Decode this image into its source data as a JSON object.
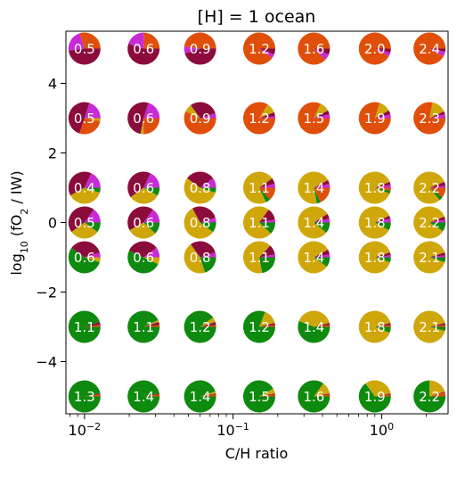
{
  "chart_data": {
    "type": "scatter",
    "title": "[H] = 1 ocean",
    "xlabel": "C/H ratio",
    "ylabel": "log10 (fO2 / IW)",
    "x_scale": "log",
    "xlim": [
      0.0075,
      2.8
    ],
    "ylim": [
      -5.5,
      5.5
    ],
    "x_tick_labels": [
      {
        "value": 0.01,
        "label": "10",
        "exp": "−2"
      },
      {
        "value": 0.1,
        "label": "10",
        "exp": "−1"
      },
      {
        "value": 1,
        "label": "10",
        "exp": "0"
      }
    ],
    "y_tick_labels": [
      {
        "value": 4,
        "label": "4"
      },
      {
        "value": 2,
        "label": "2"
      },
      {
        "value": 0,
        "label": "0"
      },
      {
        "value": -2,
        "label": "−2"
      },
      {
        "value": -4,
        "label": "−4"
      }
    ],
    "x": [
      0.01,
      0.025,
      0.06,
      0.15,
      0.35,
      0.9,
      2.1
    ],
    "y": [
      5,
      3,
      1,
      0,
      -1,
      -3,
      -5
    ],
    "colors": {
      "H2": "#0e8a0e",
      "CO2": "#cfa70a",
      "CH4": "#e04f0a",
      "H2O": "#8b0c3c",
      "CO": "#c82bd6"
    },
    "rows": [
      {
        "y": 5,
        "labels": [
          "0.5",
          "0.6",
          "0.9",
          "1.2",
          "1.6",
          "2.0",
          "2.4"
        ],
        "pies": [
          [
            [
              "CH4",
              0.3
            ],
            [
              "CO",
              0.22
            ],
            [
              "H2O",
              0.48
            ]
          ],
          [
            [
              "CH4",
              0.25
            ],
            [
              "CO",
              0.2
            ],
            [
              "H2O",
              0.55
            ]
          ],
          [
            [
              "CH4",
              0.48
            ],
            [
              "CO",
              0.07
            ],
            [
              "H2O",
              0.45
            ]
          ],
          [
            [
              "CH4",
              0.9
            ],
            [
              "CO",
              0.04
            ],
            [
              "H2O",
              0.06
            ]
          ],
          [
            [
              "CH4",
              0.88
            ],
            [
              "CO",
              0.06
            ],
            [
              "H2O",
              0.06
            ]
          ],
          [
            [
              "CH4",
              0.92
            ],
            [
              "CO",
              0.04
            ],
            [
              "H2O",
              0.04
            ]
          ],
          [
            [
              "CH4",
              0.92
            ],
            [
              "CO",
              0.05
            ],
            [
              "H2O",
              0.03
            ]
          ]
        ]
      },
      {
        "y": 3,
        "labels": [
          "0.5",
          "0.6",
          "0.9",
          "1.2",
          "1.5",
          "1.9",
          "2.3"
        ],
        "pies": [
          [
            [
              "CO",
              0.2
            ],
            [
              "H2O",
              0.5
            ],
            [
              "CH4",
              0.27
            ],
            [
              "CO2",
              0.03
            ]
          ],
          [
            [
              "CO",
              0.2
            ],
            [
              "H2O",
              0.52
            ],
            [
              "CO2",
              0.03
            ],
            [
              "CH4",
              0.25
            ]
          ],
          [
            [
              "CO",
              0.05
            ],
            [
              "H2O",
              0.3
            ],
            [
              "CO2",
              0.08
            ],
            [
              "CH4",
              0.57
            ]
          ],
          [
            [
              "CO",
              0.02
            ],
            [
              "H2O",
              0.04
            ],
            [
              "CO2",
              0.1
            ],
            [
              "CH4",
              0.84
            ]
          ],
          [
            [
              "CO",
              0.04
            ],
            [
              "H2O",
              0.04
            ],
            [
              "CO2",
              0.1
            ],
            [
              "CH4",
              0.82
            ]
          ],
          [
            [
              "CO",
              0.04
            ],
            [
              "H2O",
              0.04
            ],
            [
              "CO2",
              0.12
            ],
            [
              "CH4",
              0.8
            ]
          ],
          [
            [
              "CO",
              0.04
            ],
            [
              "H2O",
              0.03
            ],
            [
              "CO2",
              0.15
            ],
            [
              "CH4",
              0.78
            ]
          ]
        ]
      },
      {
        "y": 1,
        "labels": [
          "0.4",
          "0.6",
          "0.8",
          "1.1",
          "1.4",
          "1.8",
          "2.2"
        ],
        "pies": [
          [
            [
              "CO",
              0.18
            ],
            [
              "H2O",
              0.4
            ],
            [
              "CO2",
              0.37
            ],
            [
              "H2",
              0.05
            ]
          ],
          [
            [
              "CO",
              0.18
            ],
            [
              "H2O",
              0.42
            ],
            [
              "CO2",
              0.32
            ],
            [
              "H2",
              0.08
            ]
          ],
          [
            [
              "CO",
              0.1
            ],
            [
              "H2O",
              0.3
            ],
            [
              "CO2",
              0.55
            ],
            [
              "H2",
              0.05
            ]
          ],
          [
            [
              "CO",
              0.04
            ],
            [
              "H2O",
              0.06
            ],
            [
              "CO2",
              0.72
            ],
            [
              "H2",
              0.05
            ],
            [
              "CH4",
              0.13
            ]
          ],
          [
            [
              "CO",
              0.04
            ],
            [
              "H2O",
              0.04
            ],
            [
              "CO2",
              0.7
            ],
            [
              "H2",
              0.04
            ],
            [
              "CH4",
              0.18
            ]
          ],
          [
            [
              "CO",
              0.03
            ],
            [
              "H2O",
              0.03
            ],
            [
              "CO2",
              0.88
            ],
            [
              "H2",
              0.03
            ],
            [
              "CH4",
              0.03
            ]
          ],
          [
            [
              "CO",
              0.02
            ],
            [
              "H2O",
              0.04
            ],
            [
              "CO2",
              0.8
            ],
            [
              "H2",
              0.04
            ],
            [
              "CH4",
              0.1
            ]
          ]
        ]
      },
      {
        "y": 0,
        "labels": [
          "0.5",
          "0.6",
          "0.8",
          "1.1",
          "1.4",
          "1.8",
          "2.2"
        ],
        "pies": [
          [
            [
              "CO",
              0.15
            ],
            [
              "H2O",
              0.45
            ],
            [
              "CO2",
              0.3
            ],
            [
              "H2",
              0.1
            ]
          ],
          [
            [
              "CO",
              0.15
            ],
            [
              "H2O",
              0.43
            ],
            [
              "CO2",
              0.3
            ],
            [
              "H2",
              0.12
            ]
          ],
          [
            [
              "CO",
              0.05
            ],
            [
              "H2O",
              0.28
            ],
            [
              "CO2",
              0.57
            ],
            [
              "H2",
              0.1
            ]
          ],
          [
            [
              "CO",
              0.03
            ],
            [
              "H2O",
              0.12
            ],
            [
              "CO2",
              0.73
            ],
            [
              "H2",
              0.12
            ]
          ],
          [
            [
              "CO",
              0.04
            ],
            [
              "H2O",
              0.05
            ],
            [
              "CO2",
              0.8
            ],
            [
              "H2",
              0.11
            ]
          ],
          [
            [
              "CO",
              0.04
            ],
            [
              "H2O",
              0.03
            ],
            [
              "CO2",
              0.85
            ],
            [
              "H2",
              0.08
            ]
          ],
          [
            [
              "CO",
              0.03
            ],
            [
              "H2O",
              0.03
            ],
            [
              "CO2",
              0.85
            ],
            [
              "H2",
              0.09
            ]
          ]
        ]
      },
      {
        "y": -1,
        "labels": [
          "0.6",
          "0.6",
          "0.8",
          "1.1",
          "1.4",
          "1.8",
          "2.1"
        ],
        "pies": [
          [
            [
              "CO",
              0.05
            ],
            [
              "H2O",
              0.35
            ],
            [
              "H2",
              0.55
            ],
            [
              "CO2",
              0.05
            ]
          ],
          [
            [
              "CO",
              0.1
            ],
            [
              "H2O",
              0.33
            ],
            [
              "H2",
              0.5
            ],
            [
              "CO2",
              0.07
            ]
          ],
          [
            [
              "CO",
              0.05
            ],
            [
              "H2O",
              0.3
            ],
            [
              "CO2",
              0.45
            ],
            [
              "H2",
              0.2
            ]
          ],
          [
            [
              "CO",
              0.03
            ],
            [
              "H2O",
              0.1
            ],
            [
              "CO2",
              0.65
            ],
            [
              "H2",
              0.22
            ]
          ],
          [
            [
              "CO",
              0.03
            ],
            [
              "H2O",
              0.05
            ],
            [
              "CO2",
              0.82
            ],
            [
              "H2",
              0.1
            ]
          ],
          [
            [
              "CO",
              0.02
            ],
            [
              "H2O",
              0.03
            ],
            [
              "CO2",
              0.9
            ],
            [
              "H2",
              0.05
            ]
          ],
          [
            [
              "CO",
              0.02
            ],
            [
              "H2O",
              0.03
            ],
            [
              "CO2",
              0.9
            ],
            [
              "H2",
              0.05
            ]
          ]
        ]
      },
      {
        "y": -3,
        "labels": [
          "1.1",
          "1.1",
          "1.2",
          "1.2",
          "1.4",
          "1.8",
          "2.1"
        ],
        "pies": [
          [
            [
              "CH4",
              0.02
            ],
            [
              "H2O",
              0.03
            ],
            [
              "H2",
              0.95
            ]
          ],
          [
            [
              "CH4",
              0.02
            ],
            [
              "H2O",
              0.03
            ],
            [
              "CO2",
              0.02
            ],
            [
              "H2",
              0.93
            ]
          ],
          [
            [
              "CH4",
              0.02
            ],
            [
              "H2O",
              0.03
            ],
            [
              "CO2",
              0.05
            ],
            [
              "H2",
              0.9
            ]
          ],
          [
            [
              "CH4",
              0.02
            ],
            [
              "H2O",
              0.02
            ],
            [
              "CO2",
              0.15
            ],
            [
              "H2",
              0.81
            ]
          ],
          [
            [
              "CH4",
              0.02
            ],
            [
              "H2O",
              0.02
            ],
            [
              "CO2",
              0.4
            ],
            [
              "H2",
              0.56
            ]
          ],
          [
            [
              "CH4",
              0.02
            ],
            [
              "H2O",
              0.02
            ],
            [
              "CO2",
              0.9
            ],
            [
              "H2",
              0.06
            ]
          ],
          [
            [
              "CH4",
              0.02
            ],
            [
              "H2O",
              0.02
            ],
            [
              "CO2",
              0.92
            ],
            [
              "H2",
              0.04
            ]
          ]
        ]
      },
      {
        "y": -5,
        "labels": [
          "1.3",
          "1.4",
          "1.4",
          "1.5",
          "1.6",
          "1.9",
          "2.2"
        ],
        "pies": [
          [
            [
              "CH4",
              0.02
            ],
            [
              "H2O",
              0.01
            ],
            [
              "H2",
              0.97
            ]
          ],
          [
            [
              "CH4",
              0.02
            ],
            [
              "H2O",
              0.01
            ],
            [
              "H2",
              0.97
            ]
          ],
          [
            [
              "CH4",
              0.02
            ],
            [
              "H2O",
              0.01
            ],
            [
              "CO2",
              0.02
            ],
            [
              "H2",
              0.95
            ]
          ],
          [
            [
              "CH4",
              0.02
            ],
            [
              "H2O",
              0.01
            ],
            [
              "CO2",
              0.05
            ],
            [
              "H2",
              0.92
            ]
          ],
          [
            [
              "CH4",
              0.02
            ],
            [
              "H2O",
              0.01
            ],
            [
              "CO2",
              0.12
            ],
            [
              "H2",
              0.85
            ]
          ],
          [
            [
              "CH4",
              0.02
            ],
            [
              "H2O",
              0.01
            ],
            [
              "CO2",
              0.32
            ],
            [
              "H2",
              0.65
            ]
          ],
          [
            [
              "CH4",
              0.04
            ],
            [
              "H2O",
              0.01
            ],
            [
              "CO2",
              0.2
            ],
            [
              "H2",
              0.75
            ]
          ]
        ]
      }
    ]
  }
}
